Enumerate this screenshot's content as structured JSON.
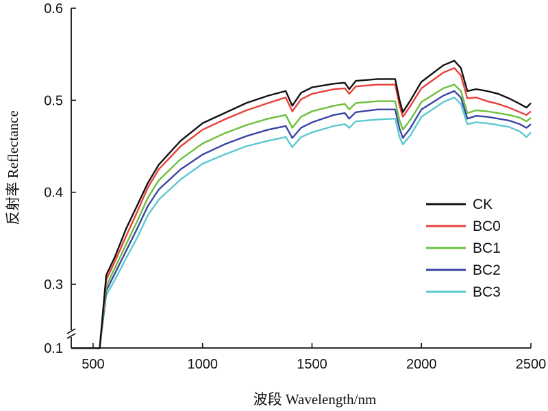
{
  "chart_data": {
    "type": "line",
    "title": "",
    "xlabel": "波段 Wavelength/nm",
    "ylabel": "反射率 Reflectance",
    "xlim": [
      400,
      2500
    ],
    "ylim": [
      0.1,
      0.6
    ],
    "y_axis_break": {
      "below": 0.23,
      "display_value": 0.1
    },
    "x_ticks": [
      500,
      1000,
      1500,
      2000,
      2500
    ],
    "x_tick_labels": [
      "500",
      "1000",
      "1500",
      "2000",
      "2500"
    ],
    "y_ticks": [
      0.1,
      0.3,
      0.4,
      0.5,
      0.6
    ],
    "y_tick_labels": [
      "0.1",
      "0.3",
      "0.4",
      "0.5",
      "0.6"
    ],
    "grid": false,
    "legend_position": "right",
    "x": [
      400,
      450,
      500,
      530,
      560,
      600,
      650,
      700,
      750,
      800,
      900,
      1000,
      1100,
      1200,
      1300,
      1380,
      1410,
      1450,
      1500,
      1600,
      1650,
      1670,
      1700,
      1800,
      1880,
      1900,
      1915,
      1950,
      2000,
      2100,
      2150,
      2180,
      2210,
      2250,
      2300,
      2350,
      2400,
      2450,
      2480,
      2500
    ],
    "series": [
      {
        "name": "CK",
        "color": "#111111",
        "values": [
          0.12,
          0.127,
          0.13,
          0.145,
          0.31,
          0.33,
          0.36,
          0.385,
          0.41,
          0.43,
          0.456,
          0.475,
          0.486,
          0.497,
          0.505,
          0.51,
          0.494,
          0.508,
          0.514,
          0.518,
          0.519,
          0.512,
          0.521,
          0.523,
          0.523,
          0.5,
          0.487,
          0.5,
          0.52,
          0.538,
          0.543,
          0.535,
          0.51,
          0.512,
          0.51,
          0.507,
          0.502,
          0.496,
          0.492,
          0.497
        ]
      },
      {
        "name": "BC0",
        "color": "#e8403a",
        "values": [
          0.12,
          0.127,
          0.13,
          0.145,
          0.305,
          0.325,
          0.352,
          0.378,
          0.405,
          0.425,
          0.45,
          0.468,
          0.479,
          0.489,
          0.497,
          0.503,
          0.488,
          0.501,
          0.507,
          0.512,
          0.513,
          0.507,
          0.515,
          0.517,
          0.517,
          0.494,
          0.482,
          0.494,
          0.513,
          0.53,
          0.535,
          0.527,
          0.502,
          0.503,
          0.499,
          0.496,
          0.492,
          0.487,
          0.484,
          0.488
        ]
      },
      {
        "name": "BC1",
        "color": "#6cbf3d",
        "values": [
          0.12,
          0.126,
          0.129,
          0.143,
          0.298,
          0.318,
          0.343,
          0.368,
          0.394,
          0.413,
          0.436,
          0.453,
          0.464,
          0.473,
          0.48,
          0.484,
          0.47,
          0.482,
          0.488,
          0.494,
          0.496,
          0.49,
          0.497,
          0.499,
          0.499,
          0.478,
          0.468,
          0.479,
          0.498,
          0.513,
          0.517,
          0.51,
          0.486,
          0.489,
          0.488,
          0.486,
          0.484,
          0.481,
          0.477,
          0.481
        ]
      },
      {
        "name": "BC2",
        "color": "#3a44a4",
        "values": [
          0.12,
          0.126,
          0.129,
          0.142,
          0.293,
          0.312,
          0.336,
          0.36,
          0.385,
          0.403,
          0.425,
          0.441,
          0.452,
          0.461,
          0.468,
          0.472,
          0.459,
          0.47,
          0.476,
          0.484,
          0.486,
          0.48,
          0.487,
          0.49,
          0.49,
          0.469,
          0.459,
          0.47,
          0.49,
          0.505,
          0.51,
          0.503,
          0.48,
          0.483,
          0.482,
          0.48,
          0.478,
          0.474,
          0.47,
          0.474
        ]
      },
      {
        "name": "BC3",
        "color": "#5cc8d0",
        "values": [
          0.12,
          0.125,
          0.128,
          0.141,
          0.288,
          0.305,
          0.328,
          0.35,
          0.375,
          0.392,
          0.414,
          0.431,
          0.441,
          0.45,
          0.456,
          0.46,
          0.449,
          0.46,
          0.465,
          0.472,
          0.474,
          0.47,
          0.477,
          0.479,
          0.48,
          0.46,
          0.452,
          0.462,
          0.482,
          0.498,
          0.503,
          0.496,
          0.474,
          0.476,
          0.475,
          0.473,
          0.471,
          0.466,
          0.46,
          0.465
        ]
      }
    ]
  }
}
